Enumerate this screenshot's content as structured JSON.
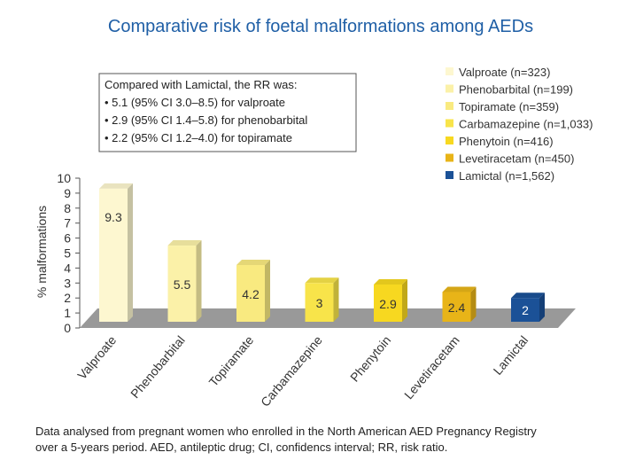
{
  "chart_data": {
    "type": "bar",
    "title": "Comparative risk of foetal malformations among AEDs",
    "ylabel": "% malformations",
    "ylim": [
      0,
      10
    ],
    "yticks": [
      "0",
      "1",
      "2",
      "3",
      "4",
      "5",
      "6",
      "7",
      "8",
      "9",
      "10"
    ],
    "categories": [
      "Valproate",
      "Phenobarbital",
      "Topiramate",
      "Carbamazepine",
      "Phenytoin",
      "Levetiracetam",
      "Lamictal"
    ],
    "values": [
      9.3,
      5.5,
      4.2,
      3,
      2.9,
      2.4,
      2
    ],
    "value_labels": [
      "9.3",
      "5.5",
      "4.2",
      "3",
      "2.9",
      "2.4",
      "2"
    ],
    "colors": [
      "#fdf7d0",
      "#fbf1a8",
      "#f9ea80",
      "#f8e44a",
      "#f7d820",
      "#e8b418",
      "#1b5197"
    ],
    "legend": [
      "Valproate (n=323)",
      "Phenobarbital (n=199)",
      "Topiramate (n=359)",
      "Carbamazepine (n=1,033)",
      "Phenytoin (n=416)",
      "Levetiracetam (n=450)",
      "Lamictal (n=1,562)"
    ],
    "legend_position": "top-right",
    "grid": false
  },
  "note_box": {
    "heading": "Compared with Lamictal, the RR was:",
    "bullets": [
      "• 5.1 (95% CI 3.0–8.5) for valproate",
      "• 2.9 (95% CI 1.4–5.8) for phenobarbital",
      "• 2.2 (95% CI 1.2–4.0) for topiramate"
    ]
  },
  "footnote": {
    "line1": "Data analysed from pregnant women who enrolled in the North American AED Pregnancy Registry",
    "line2": "over a 5-years period. AED, antileptic drug; CI, confidencs interval; RR, risk ratio."
  }
}
